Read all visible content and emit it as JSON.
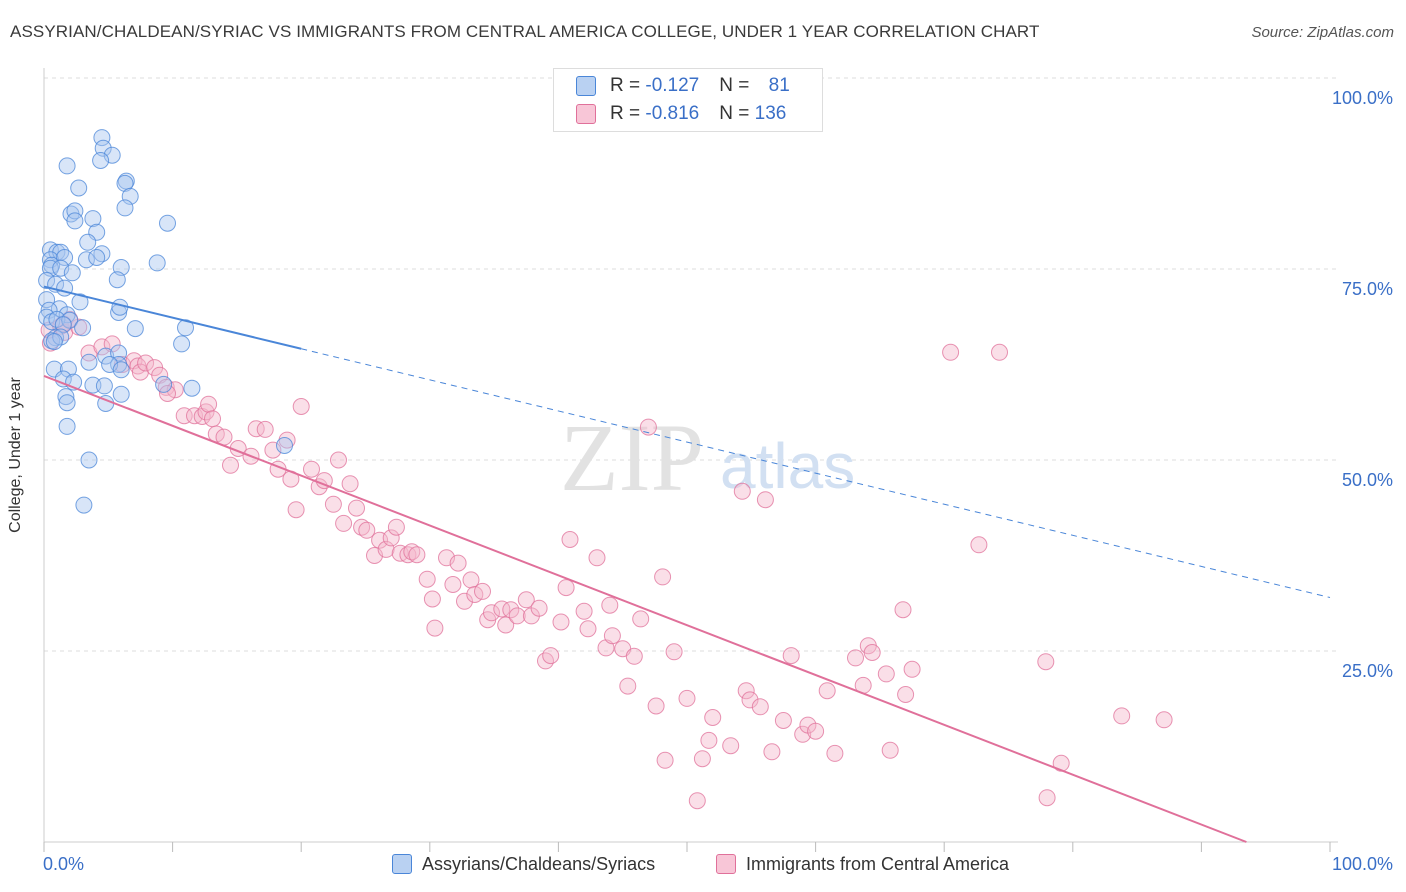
{
  "title": "ASSYRIAN/CHALDEAN/SYRIAC VS IMMIGRANTS FROM CENTRAL AMERICA COLLEGE, UNDER 1 YEAR CORRELATION CHART",
  "source": "Source: ZipAtlas.com",
  "watermark": {
    "zip": "ZIP",
    "atlas": "atlas"
  },
  "colors": {
    "blue": "#4a86d8",
    "blue_fill": "#a9c6ef",
    "pink": "#e0709a",
    "pink_fill": "#f4b8cd",
    "tick_label": "#3a6fc7",
    "grid": "#dddddd"
  },
  "legend_top": {
    "rows": [
      {
        "r_label": "R = ",
        "r_value": "-0.127",
        "n_label": "N = ",
        "n_value": "81"
      },
      {
        "r_label": "R = ",
        "r_value": "-0.816",
        "n_label": "N = ",
        "n_value": "136"
      }
    ]
  },
  "legend_bottom": [
    "Assyrians/Chaldeans/Syriacs",
    "Immigrants from Central America"
  ],
  "chart_data": {
    "type": "scatter",
    "ylabel": "College, Under 1 year",
    "xlim": [
      0,
      100
    ],
    "ylim": [
      0,
      100
    ],
    "x_tick_labels": [
      "0.0%",
      "100.0%"
    ],
    "y_tick_labels": [
      "100.0%",
      "75.0%",
      "50.0%",
      "25.0%"
    ],
    "y_ticks": [
      100,
      75,
      50,
      25
    ],
    "grid": true,
    "legend_position": "top-center",
    "series": [
      {
        "name": "Assyrians/Chaldeans/Syriacs",
        "color": "#4a86d8",
        "r": -0.127,
        "n": 81,
        "trend": {
          "x0": 0,
          "y0": 72.7,
          "x_solid_end": 20,
          "x1": 100,
          "y1": 32.0
        },
        "points": [
          [
            4.5,
            92.2
          ],
          [
            4.6,
            90.8
          ],
          [
            5.3,
            89.9
          ],
          [
            1.8,
            88.5
          ],
          [
            4.4,
            89.2
          ],
          [
            2.7,
            85.6
          ],
          [
            6.4,
            86.5
          ],
          [
            6.3,
            86.2
          ],
          [
            6.7,
            84.5
          ],
          [
            6.3,
            83.0
          ],
          [
            2.1,
            82.2
          ],
          [
            2.4,
            82.6
          ],
          [
            2.4,
            81.3
          ],
          [
            3.8,
            81.6
          ],
          [
            9.6,
            81.0
          ],
          [
            4.1,
            79.8
          ],
          [
            3.4,
            78.5
          ],
          [
            4.5,
            77.0
          ],
          [
            0.5,
            77.5
          ],
          [
            1.0,
            77.2
          ],
          [
            1.3,
            77.2
          ],
          [
            0.5,
            76.2
          ],
          [
            0.6,
            75.5
          ],
          [
            1.6,
            76.5
          ],
          [
            3.3,
            76.2
          ],
          [
            4.1,
            76.5
          ],
          [
            0.5,
            75.1
          ],
          [
            1.3,
            75.1
          ],
          [
            6.0,
            75.2
          ],
          [
            8.8,
            75.8
          ],
          [
            2.2,
            74.5
          ],
          [
            5.7,
            73.6
          ],
          [
            0.2,
            73.5
          ],
          [
            0.9,
            73.0
          ],
          [
            1.6,
            72.5
          ],
          [
            0.2,
            71.0
          ],
          [
            2.8,
            70.7
          ],
          [
            1.2,
            69.8
          ],
          [
            1.8,
            69.0
          ],
          [
            0.4,
            69.6
          ],
          [
            5.8,
            69.3
          ],
          [
            5.9,
            70.0
          ],
          [
            0.2,
            68.7
          ],
          [
            0.6,
            68.1
          ],
          [
            1.0,
            68.4
          ],
          [
            2.0,
            68.3
          ],
          [
            1.5,
            67.7
          ],
          [
            7.1,
            67.2
          ],
          [
            11.0,
            67.3
          ],
          [
            3.0,
            67.3
          ],
          [
            0.9,
            66.0
          ],
          [
            0.6,
            65.6
          ],
          [
            1.3,
            66.1
          ],
          [
            0.8,
            65.5
          ],
          [
            10.7,
            65.2
          ],
          [
            4.8,
            63.6
          ],
          [
            5.8,
            64.0
          ],
          [
            0.8,
            61.9
          ],
          [
            1.9,
            61.9
          ],
          [
            3.5,
            62.8
          ],
          [
            5.8,
            62.5
          ],
          [
            5.1,
            62.5
          ],
          [
            6.0,
            61.8
          ],
          [
            1.5,
            60.6
          ],
          [
            2.3,
            60.2
          ],
          [
            3.8,
            59.8
          ],
          [
            4.7,
            59.7
          ],
          [
            9.3,
            59.9
          ],
          [
            11.5,
            59.4
          ],
          [
            6.0,
            58.6
          ],
          [
            1.7,
            58.3
          ],
          [
            1.8,
            57.5
          ],
          [
            4.8,
            57.4
          ],
          [
            1.8,
            54.4
          ],
          [
            3.5,
            50.0
          ],
          [
            18.7,
            51.9
          ],
          [
            3.1,
            44.1
          ]
        ]
      },
      {
        "name": "Immigrants from Central America",
        "color": "#e0709a",
        "r": -0.816,
        "n": 136,
        "trend": {
          "x0": 0,
          "y0": 61.0,
          "x1": 93.5,
          "y1": 0
        },
        "points": [
          [
            0.5,
            65.3
          ],
          [
            0.4,
            67.0
          ],
          [
            1.3,
            67.5
          ],
          [
            1.6,
            66.7
          ],
          [
            2.7,
            67.4
          ],
          [
            2.0,
            68.4
          ],
          [
            1.5,
            67.8
          ],
          [
            3.5,
            64.0
          ],
          [
            4.5,
            64.8
          ],
          [
            5.3,
            65.2
          ],
          [
            6.1,
            62.5
          ],
          [
            7.0,
            63.0
          ],
          [
            7.3,
            62.3
          ],
          [
            7.5,
            61.5
          ],
          [
            7.9,
            62.7
          ],
          [
            8.6,
            62.1
          ],
          [
            9.0,
            61.1
          ],
          [
            9.5,
            59.5
          ],
          [
            10.2,
            59.2
          ],
          [
            9.6,
            58.7
          ],
          [
            10.9,
            55.8
          ],
          [
            11.7,
            55.8
          ],
          [
            12.3,
            55.7
          ],
          [
            12.6,
            56.3
          ],
          [
            12.8,
            57.3
          ],
          [
            13.1,
            55.4
          ],
          [
            13.4,
            53.4
          ],
          [
            14.0,
            53.0
          ],
          [
            14.5,
            49.3
          ],
          [
            15.1,
            51.5
          ],
          [
            16.1,
            50.5
          ],
          [
            16.5,
            54.1
          ],
          [
            17.2,
            54.0
          ],
          [
            17.8,
            51.3
          ],
          [
            18.2,
            48.8
          ],
          [
            18.9,
            52.6
          ],
          [
            19.2,
            47.5
          ],
          [
            19.6,
            43.5
          ],
          [
            20.0,
            57.0
          ],
          [
            20.8,
            48.8
          ],
          [
            21.4,
            46.5
          ],
          [
            21.8,
            47.3
          ],
          [
            22.5,
            44.2
          ],
          [
            22.9,
            50.0
          ],
          [
            23.3,
            41.7
          ],
          [
            23.8,
            46.9
          ],
          [
            24.3,
            43.7
          ],
          [
            24.7,
            41.2
          ],
          [
            25.1,
            40.8
          ],
          [
            25.7,
            37.5
          ],
          [
            26.1,
            39.5
          ],
          [
            26.6,
            38.3
          ],
          [
            27.0,
            39.8
          ],
          [
            27.4,
            41.2
          ],
          [
            27.7,
            37.8
          ],
          [
            28.3,
            37.6
          ],
          [
            28.6,
            38.0
          ],
          [
            29.0,
            37.6
          ],
          [
            29.8,
            34.4
          ],
          [
            30.2,
            31.8
          ],
          [
            30.4,
            28.0
          ],
          [
            31.3,
            37.2
          ],
          [
            31.8,
            33.7
          ],
          [
            32.2,
            36.5
          ],
          [
            32.7,
            31.5
          ],
          [
            33.2,
            34.3
          ],
          [
            33.5,
            32.4
          ],
          [
            34.1,
            32.8
          ],
          [
            34.5,
            29.1
          ],
          [
            34.8,
            30.0
          ],
          [
            35.6,
            30.5
          ],
          [
            35.9,
            28.4
          ],
          [
            36.3,
            30.4
          ],
          [
            36.8,
            29.6
          ],
          [
            37.5,
            31.7
          ],
          [
            37.9,
            29.6
          ],
          [
            38.5,
            30.6
          ],
          [
            39.0,
            23.7
          ],
          [
            39.4,
            24.4
          ],
          [
            40.2,
            28.8
          ],
          [
            40.6,
            33.3
          ],
          [
            40.9,
            39.6
          ],
          [
            42.0,
            30.2
          ],
          [
            42.3,
            27.9
          ],
          [
            43.0,
            37.2
          ],
          [
            43.7,
            25.4
          ],
          [
            44.0,
            31.0
          ],
          [
            44.2,
            27.0
          ],
          [
            45.0,
            25.3
          ],
          [
            45.4,
            20.4
          ],
          [
            45.9,
            24.3
          ],
          [
            46.4,
            29.2
          ],
          [
            47.0,
            54.3
          ],
          [
            47.6,
            17.8
          ],
          [
            48.1,
            34.7
          ],
          [
            48.3,
            10.7
          ],
          [
            49.0,
            24.9
          ],
          [
            50.0,
            18.8
          ],
          [
            50.8,
            5.4
          ],
          [
            51.2,
            10.9
          ],
          [
            51.7,
            13.3
          ],
          [
            52.0,
            16.3
          ],
          [
            53.4,
            12.6
          ],
          [
            54.3,
            45.9
          ],
          [
            54.6,
            19.8
          ],
          [
            54.9,
            18.6
          ],
          [
            55.7,
            17.7
          ],
          [
            56.1,
            44.8
          ],
          [
            56.6,
            11.8
          ],
          [
            57.5,
            15.9
          ],
          [
            58.1,
            24.4
          ],
          [
            59.0,
            14.1
          ],
          [
            59.4,
            15.3
          ],
          [
            60.0,
            14.5
          ],
          [
            60.9,
            19.8
          ],
          [
            61.5,
            11.6
          ],
          [
            63.1,
            24.1
          ],
          [
            63.7,
            20.5
          ],
          [
            64.1,
            25.7
          ],
          [
            64.4,
            24.8
          ],
          [
            65.5,
            22.0
          ],
          [
            65.8,
            12.0
          ],
          [
            66.8,
            30.4
          ],
          [
            67.0,
            19.3
          ],
          [
            67.5,
            22.6
          ],
          [
            70.5,
            64.1
          ],
          [
            72.7,
            38.9
          ],
          [
            74.3,
            64.1
          ],
          [
            77.9,
            23.6
          ],
          [
            78.0,
            5.8
          ],
          [
            79.1,
            10.3
          ],
          [
            83.8,
            16.5
          ],
          [
            87.1,
            16.0
          ]
        ]
      }
    ]
  }
}
